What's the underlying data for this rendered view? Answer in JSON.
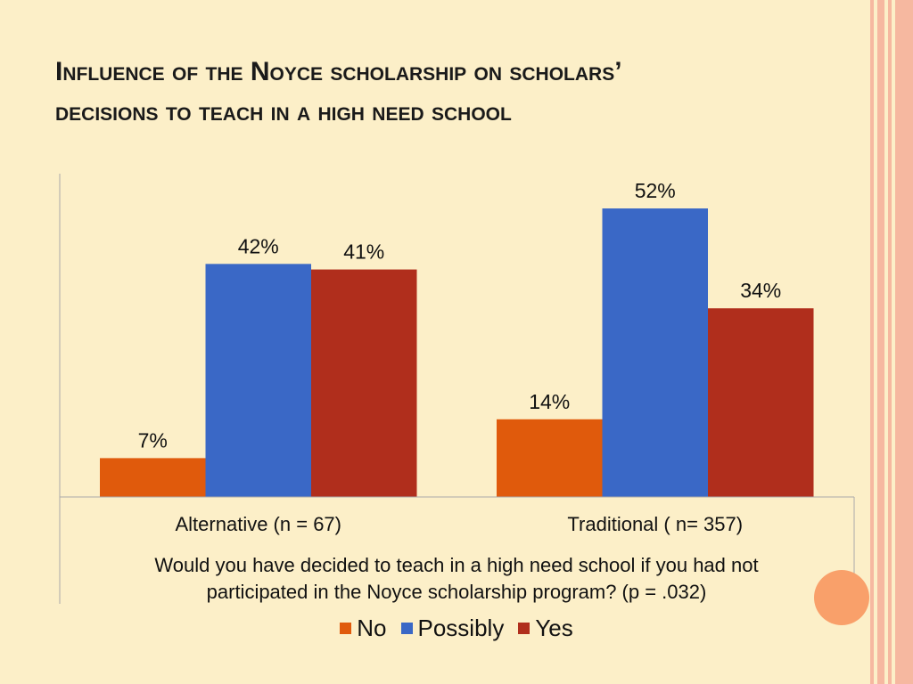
{
  "slide": {
    "title_line1": "Influence of the Noyce scholarship on scholars’",
    "title_line2": "decisions to teach in a high need school"
  },
  "colors": {
    "background": "#fcefc8",
    "no": "#e05a0c",
    "possibly": "#3a68c6",
    "yes": "#b02e1c",
    "accent_circle": "#f9a06a",
    "stripe": "#f6b8a0"
  },
  "chart_data": {
    "type": "bar",
    "categories": [
      "Alternative (n = 67)",
      "Traditional ( n= 357)"
    ],
    "series": [
      {
        "name": "No",
        "values": [
          7,
          14
        ],
        "labels": [
          "7%",
          "14%"
        ]
      },
      {
        "name": "Possibly",
        "values": [
          42,
          52
        ],
        "labels": [
          "42%",
          "52%"
        ]
      },
      {
        "name": "Yes",
        "values": [
          41,
          34
        ],
        "labels": [
          "41%",
          "34%"
        ]
      }
    ],
    "xlabel_line1": "Would you have decided to teach in a high need school if you had not",
    "xlabel_line2": "participated in the Noyce scholarship program? (p = .032)",
    "ylim": [
      0,
      60
    ],
    "grid": false,
    "legend_position": "bottom"
  }
}
